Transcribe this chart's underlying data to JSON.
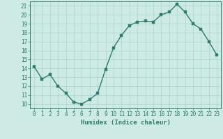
{
  "x": [
    0,
    1,
    2,
    3,
    4,
    5,
    6,
    7,
    8,
    9,
    10,
    11,
    12,
    13,
    14,
    15,
    16,
    17,
    18,
    19,
    20,
    21,
    22,
    23
  ],
  "y": [
    14.2,
    12.8,
    13.3,
    12.0,
    11.2,
    10.2,
    10.0,
    10.5,
    11.2,
    13.9,
    16.3,
    17.7,
    18.8,
    19.2,
    19.3,
    19.2,
    20.0,
    20.3,
    21.2,
    20.3,
    19.0,
    18.4,
    17.0,
    15.5
  ],
  "xlabel": "Humidex (Indice chaleur)",
  "xlim": [
    -0.5,
    23.5
  ],
  "ylim": [
    9.5,
    21.5
  ],
  "yticks": [
    10,
    11,
    12,
    13,
    14,
    15,
    16,
    17,
    18,
    19,
    20,
    21
  ],
  "xticks": [
    0,
    1,
    2,
    3,
    4,
    5,
    6,
    7,
    8,
    9,
    10,
    11,
    12,
    13,
    14,
    15,
    16,
    17,
    18,
    19,
    20,
    21,
    22,
    23
  ],
  "line_color": "#2d7d6e",
  "marker_color": "#2d7d6e",
  "bg_color": "#ceeae5",
  "grid_color": "#aad4ce",
  "axis_color": "#2d7d6e",
  "tick_color": "#2d7d6e",
  "xlabel_color": "#2d7d6e",
  "line_width": 1.0,
  "marker_size": 2.5,
  "label_fontsize": 6.5,
  "tick_fontsize": 5.5
}
